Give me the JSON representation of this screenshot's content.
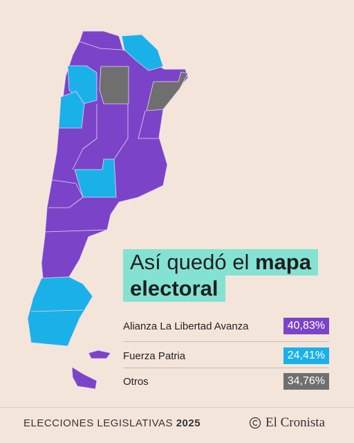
{
  "title": {
    "parts": [
      "Así quedó el ",
      "mapa",
      "electoral"
    ]
  },
  "results": [
    {
      "name": "Alianza La Libertad Avanza",
      "value": "40,83%"
    },
    {
      "name": "Fuerza Patria",
      "value": "24,41%"
    },
    {
      "name": "Otros",
      "value": "34,76%"
    }
  ],
  "footer": {
    "label": "ELECCIONES LEGISLATIVAS ",
    "year": "2025",
    "brand": "El Cronista"
  }
}
